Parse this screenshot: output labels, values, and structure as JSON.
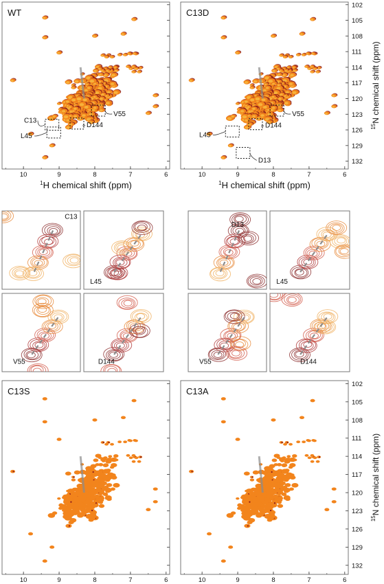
{
  "figure": {
    "axis_x_label": "chemical shift (ppm)",
    "axis_x_sup": "1",
    "axis_x_atom": "H",
    "axis_y_label": "chemical shift (ppm)",
    "axis_y_sup": "15",
    "axis_y_atom": "N",
    "x_ticks": [
      "10",
      "9",
      "8",
      "7",
      "6"
    ],
    "y_ticks": [
      "102",
      "105",
      "108",
      "111",
      "114",
      "117",
      "120",
      "123",
      "126",
      "129",
      "132"
    ],
    "colors": {
      "spectrum_main": "#f2841c",
      "spectrum_light": "#f7b23a",
      "spectrum_dark": "#8b1a1a",
      "spectrum_red": "#d8402b",
      "guide": "#8c8c8c",
      "box": "#111111"
    }
  },
  "spectra": [
    {
      "title": "WT",
      "labels": [
        "C13",
        "L45",
        "D144",
        "V55"
      ]
    },
    {
      "title": "C13D",
      "labels": [
        "L45",
        "D144",
        "V55",
        "D13"
      ]
    },
    {
      "title": "C13S",
      "labels": []
    },
    {
      "title": "C13A",
      "labels": []
    }
  ],
  "zooms": [
    {
      "label": "C13"
    },
    {
      "label": "L45"
    },
    {
      "label": "V55"
    },
    {
      "label": "D144"
    },
    {
      "label": "D13"
    },
    {
      "label": "L45"
    },
    {
      "label": "V55"
    },
    {
      "label": "D144"
    }
  ],
  "chart_data": {
    "type": "scatter",
    "description_of_axes": "2D 1H-15N HSQC spectra",
    "x": {
      "label": "1H chemical shift (ppm)",
      "range": [
        10.6,
        5.9
      ],
      "reversed": true
    },
    "y": {
      "label": "15N chemical shift (ppm)",
      "range": [
        101.5,
        133.5
      ],
      "reversed": true
    },
    "annotated_peaks": {
      "WT": [
        {
          "name": "C13",
          "x": 9.2,
          "y": 125.0
        },
        {
          "name": "L45",
          "x": 9.15,
          "y": 126.5
        },
        {
          "name": "D144",
          "x": 8.5,
          "y": 124.8
        },
        {
          "name": "V55",
          "x": 7.9,
          "y": 122.3
        }
      ],
      "C13D": [
        {
          "name": "L45",
          "x": 9.15,
          "y": 126.3
        },
        {
          "name": "D144",
          "x": 8.5,
          "y": 124.9
        },
        {
          "name": "V55",
          "x": 7.9,
          "y": 122.3
        },
        {
          "name": "D13",
          "x": 8.85,
          "y": 130.4
        }
      ]
    }
  }
}
